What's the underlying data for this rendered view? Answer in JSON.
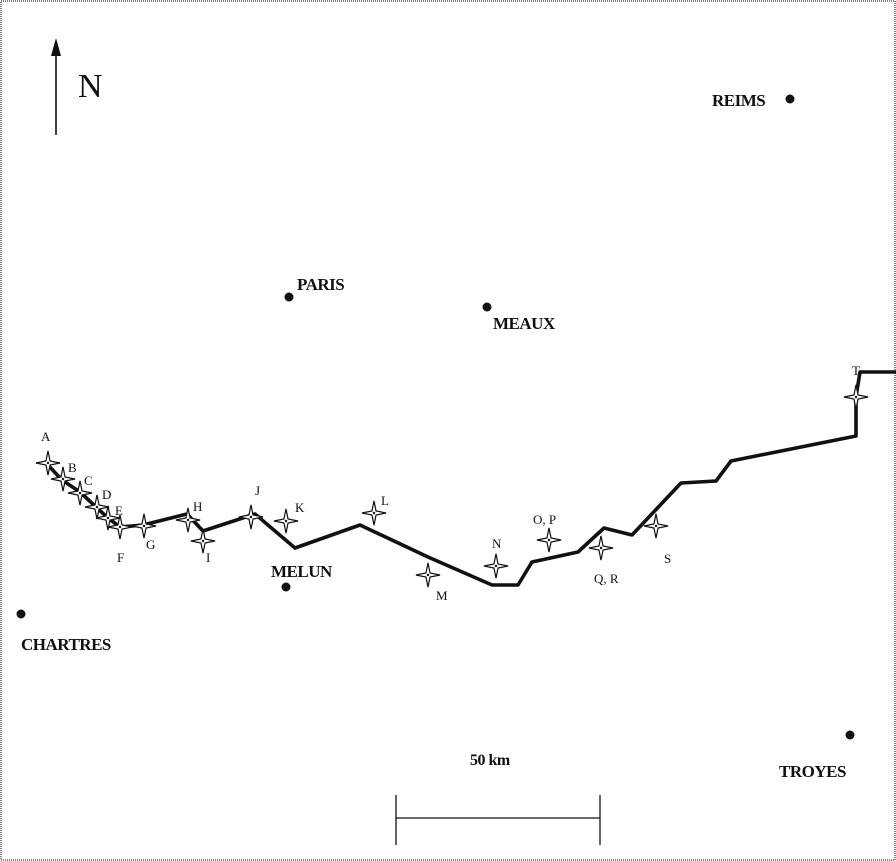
{
  "north": {
    "label": "N"
  },
  "scale": {
    "label": "50 km"
  },
  "cities": [
    {
      "id": "reims",
      "name": "REIMS"
    },
    {
      "id": "paris",
      "name": "PARIS"
    },
    {
      "id": "meaux",
      "name": "MEAUX"
    },
    {
      "id": "melun",
      "name": "MELUN"
    },
    {
      "id": "chartres",
      "name": "CHARTRES"
    },
    {
      "id": "troyes",
      "name": "TROYES"
    }
  ],
  "waypoints": [
    {
      "id": "a",
      "label": "A"
    },
    {
      "id": "b",
      "label": "B"
    },
    {
      "id": "c",
      "label": "C"
    },
    {
      "id": "d",
      "label": "D"
    },
    {
      "id": "e",
      "label": "E"
    },
    {
      "id": "f",
      "label": "F"
    },
    {
      "id": "g",
      "label": "G"
    },
    {
      "id": "h",
      "label": "H"
    },
    {
      "id": "i",
      "label": "I"
    },
    {
      "id": "j",
      "label": "J"
    },
    {
      "id": "k",
      "label": "K"
    },
    {
      "id": "l",
      "label": "L"
    },
    {
      "id": "m",
      "label": "M"
    },
    {
      "id": "n",
      "label": "N"
    },
    {
      "id": "op",
      "label": "O, P"
    },
    {
      "id": "qr",
      "label": "Q, R"
    },
    {
      "id": "s",
      "label": "S"
    },
    {
      "id": "t",
      "label": "T"
    }
  ]
}
